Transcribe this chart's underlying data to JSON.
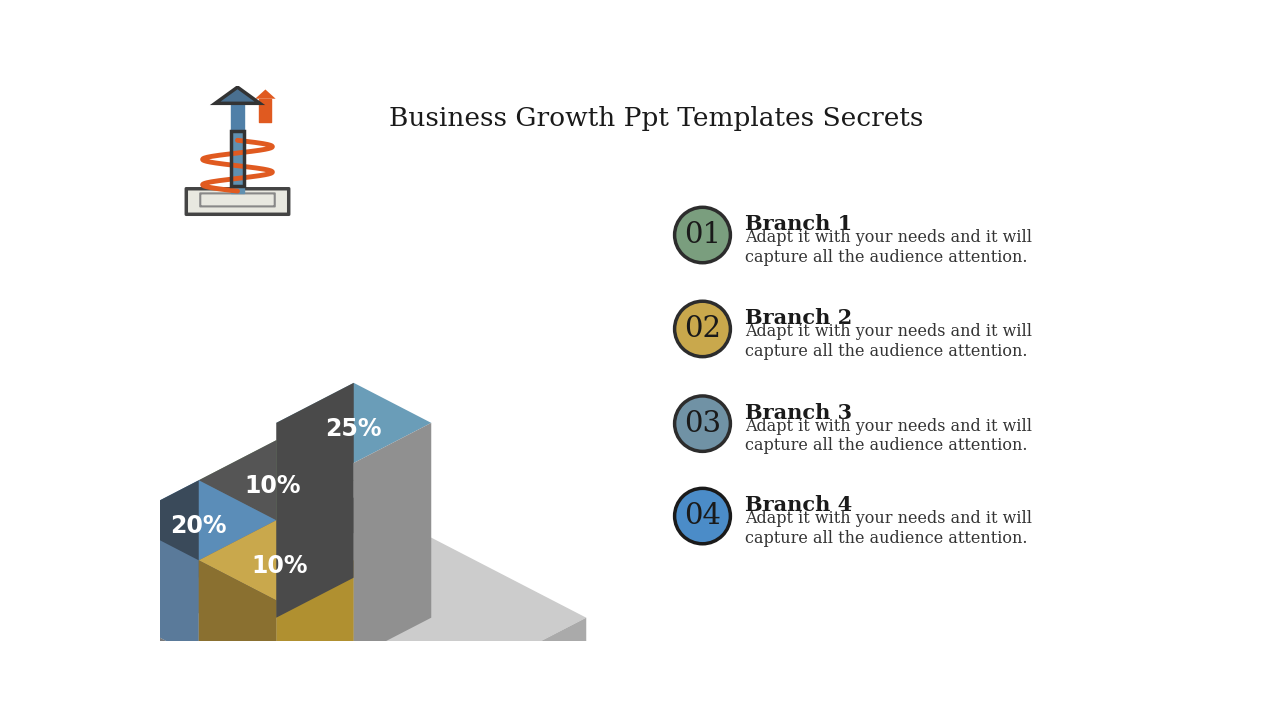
{
  "title": "Business Growth Ppt Templates Secrets",
  "title_fontsize": 19,
  "background_color": "#ffffff",
  "branches": [
    {
      "number": "01",
      "label": "Branch 1",
      "desc": "Adapt it with your needs and it will\ncapture all the audience attention.",
      "circle_color": "#7a9e7e",
      "border_color": "#2c2c2c"
    },
    {
      "number": "02",
      "label": "Branch 2",
      "desc": "Adapt it with your needs and it will\ncapture all the audience attention.",
      "circle_color": "#c9a84c",
      "border_color": "#2c2c2c"
    },
    {
      "number": "03",
      "label": "Branch 3",
      "desc": "Adapt it with your needs and it will\ncapture all the audience attention.",
      "circle_color": "#7092a5",
      "border_color": "#2c2c2c"
    },
    {
      "number": "04",
      "label": "Branch 4",
      "desc": "Adapt it with your needs and it will\ncapture all the audience attention.",
      "circle_color": "#4b8cc8",
      "border_color": "#1a1a1a"
    }
  ],
  "colors": {
    "blue_top": "#6a9db8",
    "blue_left": "#4a4a4a",
    "blue_right": "#909090",
    "green_top": "#8aab7e",
    "green_left": "#555555",
    "yellow_top": "#c9a84c",
    "yellow_right": "#b09030",
    "blue2_top": "#5b8db8",
    "base_top": "#cccccc",
    "base_left": "#7a7a7a",
    "base_right": "#aaaaaa"
  },
  "percentages": {
    "p25": "25%",
    "p10g": "10%",
    "p20": "20%",
    "p10y": "10%"
  }
}
